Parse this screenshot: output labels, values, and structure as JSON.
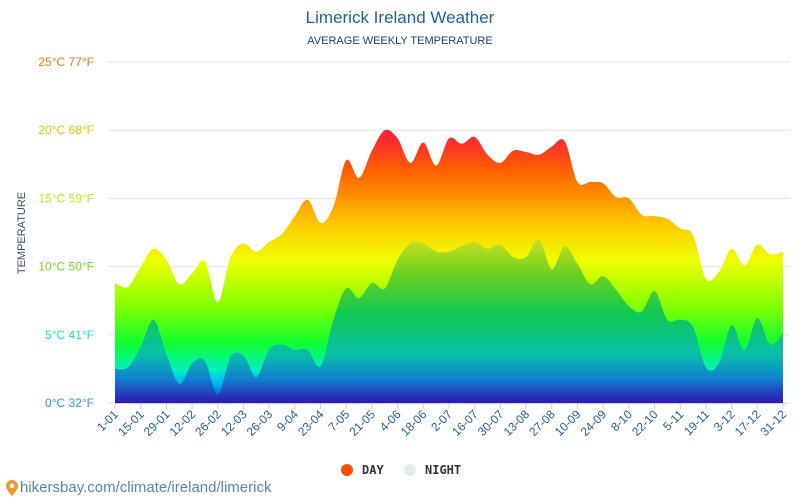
{
  "chart_data": {
    "type": "area",
    "title": "Limerick Ireland Weather",
    "subtitle": "AVERAGE WEEKLY TEMPERATURE",
    "ylabel": "TEMPERATURE",
    "ylim": [
      0,
      25
    ],
    "yticks": [
      {
        "value": 0,
        "label": "0°C 32°F",
        "color": "#2a9ee0"
      },
      {
        "value": 5,
        "label": "5°C 41°F",
        "color": "#1ee0d0"
      },
      {
        "value": 10,
        "label": "10°C 50°F",
        "color": "#6ee01a"
      },
      {
        "value": 15,
        "label": "15°C 59°F",
        "color": "#c6ec1a"
      },
      {
        "value": 20,
        "label": "20°C 68°F",
        "color": "#f5c400"
      },
      {
        "value": 25,
        "label": "25°C 77°F",
        "color": "#f07a10"
      }
    ],
    "grid": true,
    "legend_placement": "bottom",
    "xtick_labels": [
      "1-01",
      "15-01",
      "29-01",
      "12-02",
      "26-02",
      "12-03",
      "26-03",
      "9-04",
      "23-04",
      "7-05",
      "21-05",
      "4-06",
      "18-06",
      "2-07",
      "16-07",
      "30-07",
      "13-08",
      "27-08",
      "10-09",
      "24-09",
      "8-10",
      "22-10",
      "5-11",
      "19-11",
      "3-12",
      "17-12",
      "31-12"
    ],
    "series": [
      {
        "name": "DAY",
        "color": "#ff4a00",
        "values": [
          8.8,
          8.5,
          10.0,
          11.3,
          10.5,
          8.7,
          9.5,
          10.4,
          7.4,
          10.7,
          11.7,
          11.1,
          11.8,
          12.4,
          13.7,
          14.9,
          13.2,
          14.4,
          17.8,
          16.5,
          18.5,
          20.0,
          19.4,
          17.6,
          19.1,
          17.4,
          19.4,
          19.0,
          19.5,
          18.2,
          17.6,
          18.5,
          18.4,
          18.2,
          18.8,
          19.2,
          16.2,
          16.2,
          16.1,
          15.1,
          15.0,
          13.8,
          13.7,
          13.5,
          12.8,
          12.3,
          9.1,
          9.6,
          11.3,
          10.1,
          11.6,
          10.9,
          11.1
        ]
      },
      {
        "name": "NIGHT",
        "color": "#e4ecf4",
        "values": [
          2.5,
          2.6,
          4.1,
          6.1,
          3.6,
          1.4,
          2.9,
          3.1,
          0.6,
          3.4,
          3.5,
          1.9,
          3.9,
          4.3,
          3.9,
          3.9,
          2.7,
          6.1,
          8.4,
          7.7,
          8.8,
          8.4,
          10.5,
          11.7,
          11.7,
          11.1,
          11.1,
          11.5,
          11.8,
          11.3,
          11.6,
          10.7,
          10.7,
          12.0,
          9.8,
          11.5,
          10.2,
          8.7,
          9.3,
          8.3,
          7.1,
          6.7,
          8.2,
          6.1,
          6.1,
          5.6,
          2.6,
          2.9,
          5.7,
          3.9,
          6.2,
          4.3,
          5.1
        ]
      }
    ]
  },
  "footer": {
    "url": "hikersbay.com/climate/ireland/limerick",
    "icon": "map-pin-icon"
  }
}
